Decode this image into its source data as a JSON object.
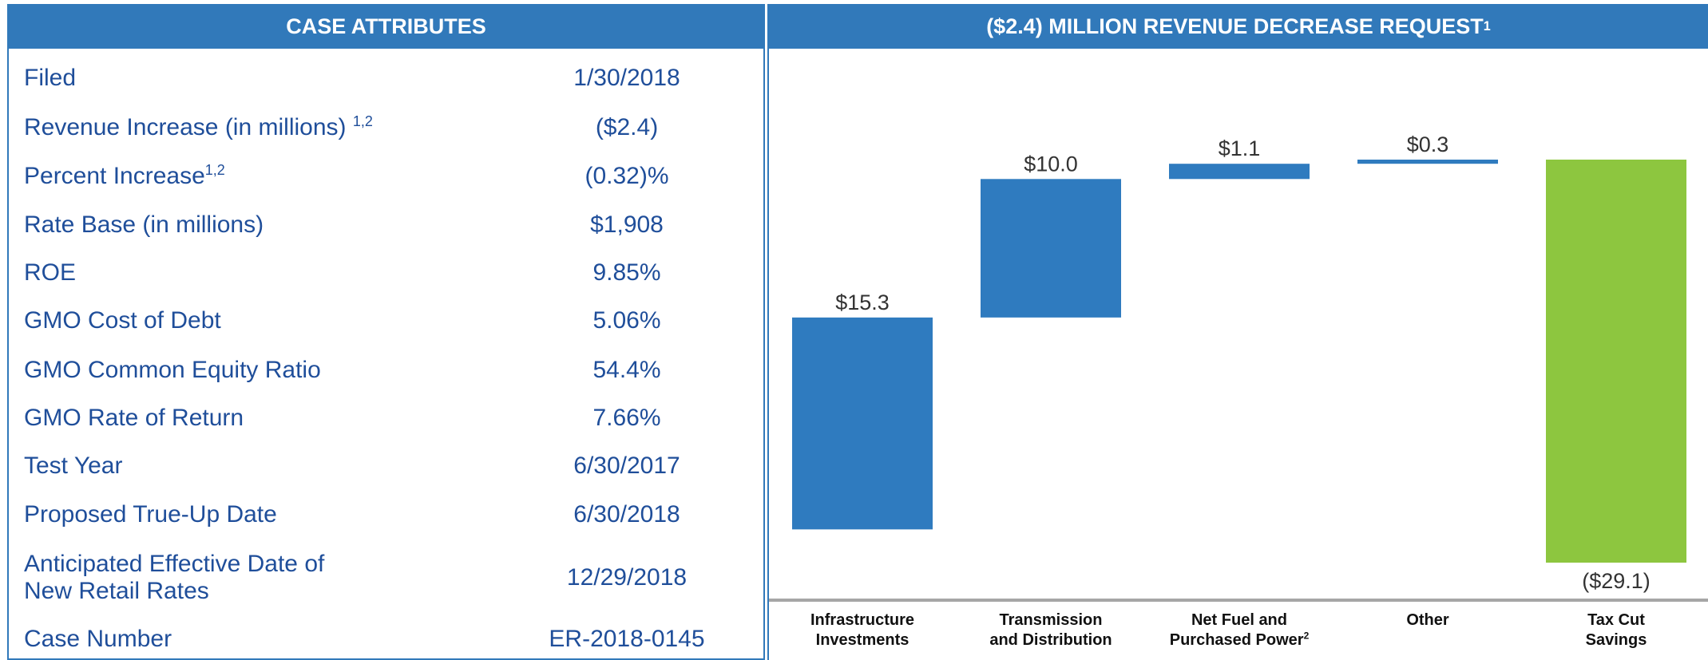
{
  "table": {
    "title": "CASE ATTRIBUTES",
    "rows": [
      {
        "label": "Filed",
        "value": "1/30/2018"
      },
      {
        "label": "Revenue Increase (in millions) ",
        "note": "1,2",
        "value": "($2.4)"
      },
      {
        "label": "Percent Increase",
        "note": "1,2",
        "value": "(0.32)%"
      },
      {
        "label": "Rate Base (in millions)",
        "value": "$1,908"
      },
      {
        "label": "ROE",
        "value": "9.85%"
      },
      {
        "label": "GMO Cost of Debt",
        "value": "5.06%"
      },
      {
        "label": "GMO Common Equity Ratio",
        "value": "54.4%"
      },
      {
        "label": "GMO Rate of Return",
        "value": "7.66%"
      },
      {
        "label": "Test Year",
        "value": "6/30/2017"
      },
      {
        "label": "Proposed True-Up Date",
        "value": "6/30/2018"
      },
      {
        "label": "Anticipated Effective Date of\nNew Retail Rates",
        "value": "12/29/2018"
      },
      {
        "label": "Case Number",
        "value": "ER-2018-0145"
      }
    ]
  },
  "chart_data": {
    "type": "waterfall",
    "title": "($2.4) MILLION REVENUE DECREASE REQUEST",
    "title_note": "1",
    "categories": [
      "Infrastructure\nInvestments",
      "Transmission\nand Distribution",
      "Net Fuel and\nPurchased Power",
      "Other",
      "Tax Cut\nSavings"
    ],
    "category_notes": [
      null,
      null,
      "2",
      null,
      null
    ],
    "values": [
      15.3,
      10.0,
      1.1,
      0.3,
      -29.1
    ],
    "value_labels": [
      "$15.3",
      "$10.0",
      "$1.1",
      "$0.3",
      "($29.1)"
    ],
    "colors": [
      "#2f7bbf",
      "#2f7bbf",
      "#2f7bbf",
      "#2f7bbf",
      "#8dc63f"
    ]
  }
}
